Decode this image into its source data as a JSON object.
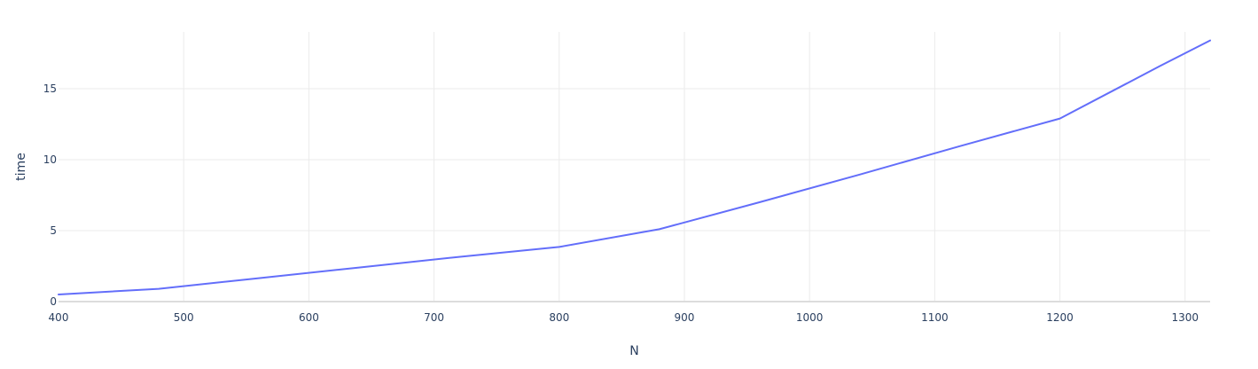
{
  "chart_data": {
    "type": "line",
    "title": "",
    "xlabel": "N",
    "ylabel": "time",
    "xlim": [
      400,
      1320
    ],
    "ylim": [
      0,
      19
    ],
    "x_ticks": [
      400,
      500,
      600,
      700,
      800,
      900,
      1000,
      1100,
      1200,
      1300
    ],
    "y_ticks": [
      0,
      5,
      10,
      15
    ],
    "grid": true,
    "legend": "none",
    "series": [
      {
        "color": "#636efa",
        "x": [
          400,
          480,
          560,
          640,
          720,
          800,
          880,
          960,
          1040,
          1120,
          1200,
          1280,
          1320
        ],
        "y": [
          0.5,
          0.9,
          1.65,
          2.4,
          3.15,
          3.85,
          5.1,
          7.0,
          8.95,
          10.95,
          12.9,
          16.6,
          18.4
        ]
      }
    ]
  }
}
